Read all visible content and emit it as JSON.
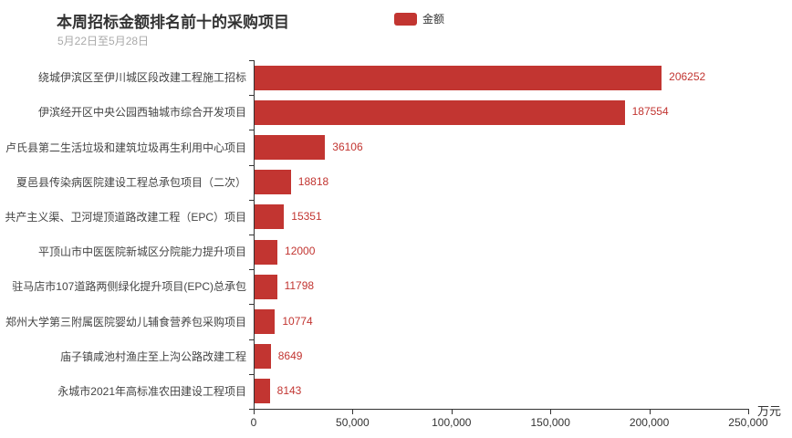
{
  "header": {
    "title": "本周招标金额排名前十的采购项目",
    "subtitle": "5月22日至5月28日",
    "legend": {
      "label": "金额",
      "color": "#c23531"
    }
  },
  "chart_data": {
    "type": "bar",
    "orientation": "horizontal",
    "title": "本周招标金额排名前十的采购项目",
    "subtitle": "5月22日至5月28日",
    "series_name": "金额",
    "legend_entries": [
      "金额"
    ],
    "categories": [
      "绕城伊滨区至伊川城区段改建工程施工招标",
      "伊滨经开区中央公园西轴城市综合开发项目",
      "卢氏县第二生活垃圾和建筑垃圾再生利用中心项目",
      "夏邑县传染病医院建设工程总承包项目（二次）",
      "共产主义渠、卫河堤顶道路改建工程（EPC）项目",
      "平顶山市中医医院新城区分院能力提升项目",
      "驻马店市107道路两侧绿化提升项目(EPC)总承包",
      "郑州大学第三附属医院婴幼儿辅食营养包采购项目",
      "庙子镇咸池村渔庄至上沟公路改建工程",
      "永城市2021年高标准农田建设工程项目"
    ],
    "values": [
      206252,
      187554,
      36106,
      18818,
      15351,
      12000,
      11798,
      10774,
      8649,
      8143
    ],
    "xlim": [
      0,
      250000
    ],
    "x_ticks": [
      0,
      50000,
      100000,
      150000,
      200000,
      250000
    ],
    "x_tick_labels": [
      "0",
      "50,000",
      "100,000",
      "150,000",
      "200,000",
      "250,000"
    ],
    "x_axis_unit": "万元",
    "bar_color": "#c23531",
    "value_label_color": "#c23531",
    "grid": false,
    "legend_position": "top-center"
  }
}
